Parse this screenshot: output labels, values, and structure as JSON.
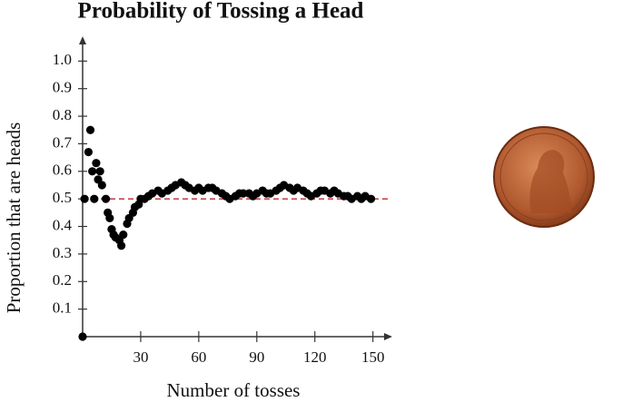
{
  "chart_data": {
    "type": "scatter",
    "title": "Probability of Tossing a Head",
    "x_label": "Number of tosses",
    "y_label": "Proportion that are heads",
    "x": [
      0,
      1,
      3,
      4,
      5,
      6,
      7,
      8,
      9,
      10,
      12,
      13,
      14,
      15,
      16,
      17,
      19,
      20,
      21,
      23,
      24,
      26,
      27,
      29,
      30,
      32,
      34,
      36,
      39,
      41,
      44,
      46,
      48,
      51,
      53,
      55,
      58,
      60,
      62,
      65,
      67,
      69,
      72,
      74,
      76,
      79,
      81,
      83,
      86,
      88,
      90,
      93,
      95,
      97,
      100,
      102,
      104,
      107,
      109,
      111,
      114,
      116,
      118,
      121,
      123,
      125,
      128,
      130,
      132,
      135,
      137,
      139,
      142,
      144,
      146,
      149
    ],
    "values": [
      0,
      0.5,
      0.67,
      0.75,
      0.6,
      0.5,
      0.63,
      0.57,
      0.6,
      0.55,
      0.5,
      0.45,
      0.43,
      0.39,
      0.37,
      0.36,
      0.35,
      0.33,
      0.37,
      0.41,
      0.43,
      0.45,
      0.47,
      0.48,
      0.5,
      0.5,
      0.51,
      0.52,
      0.53,
      0.52,
      0.53,
      0.54,
      0.55,
      0.56,
      0.55,
      0.54,
      0.53,
      0.54,
      0.53,
      0.54,
      0.54,
      0.53,
      0.52,
      0.51,
      0.5,
      0.51,
      0.52,
      0.52,
      0.52,
      0.51,
      0.52,
      0.53,
      0.52,
      0.52,
      0.53,
      0.54,
      0.55,
      0.54,
      0.53,
      0.54,
      0.53,
      0.52,
      0.51,
      0.52,
      0.53,
      0.53,
      0.52,
      0.53,
      0.52,
      0.51,
      0.51,
      0.5,
      0.51,
      0.5,
      0.51,
      0.5
    ],
    "color": "#000000",
    "reference_line": 0.5,
    "reference_color": "#c0262c",
    "xlim": [
      0,
      160
    ],
    "ylim": [
      0,
      1.09
    ],
    "xticks": [
      30,
      60,
      90,
      120,
      150
    ],
    "yticks": [
      0.1,
      0.2,
      0.3,
      0.4,
      0.5,
      0.6,
      0.7,
      0.8,
      0.9,
      {
        "value": 1,
        "label": "1.0"
      }
    ]
  }
}
